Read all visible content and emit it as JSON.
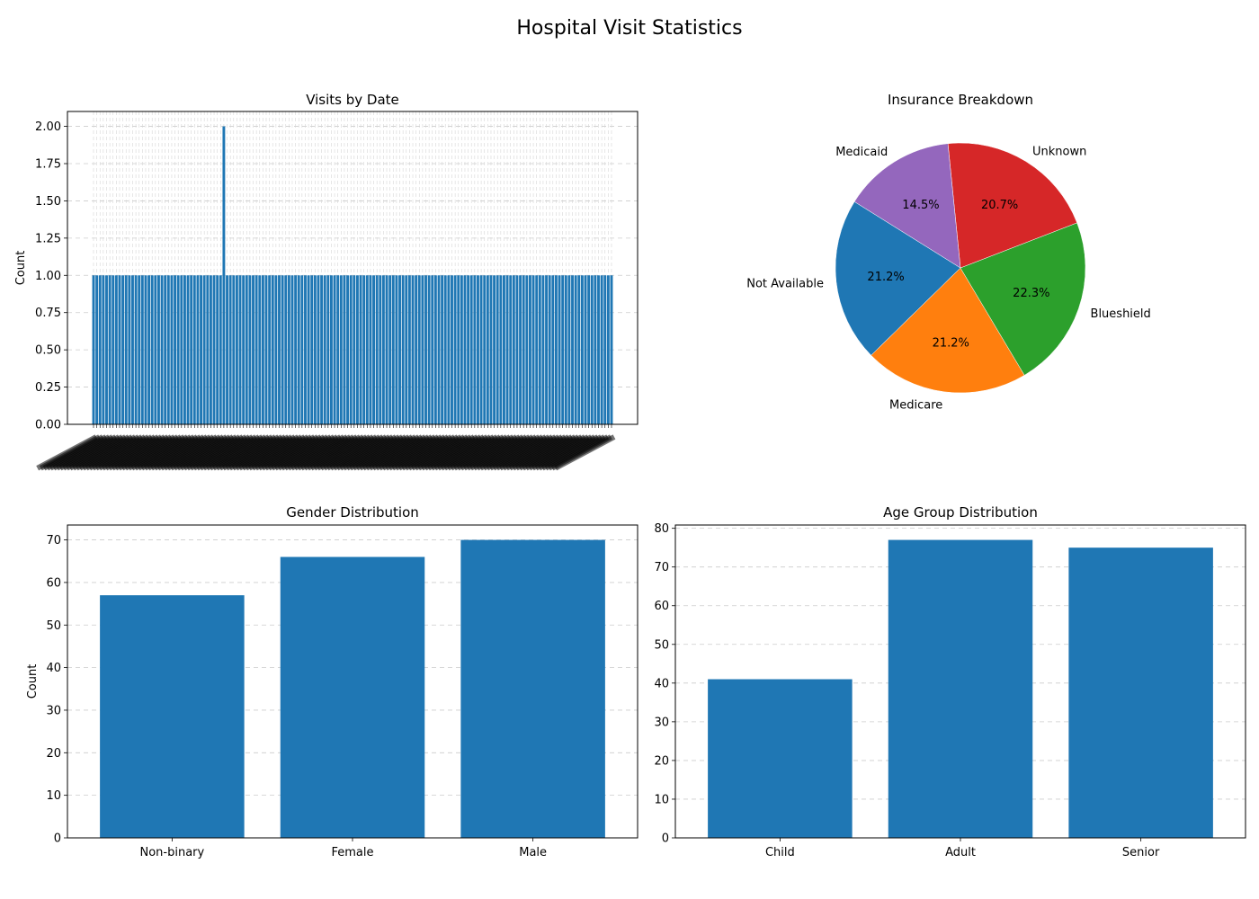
{
  "figure": {
    "title": "Hospital Visit Statistics"
  },
  "chart_data": [
    {
      "type": "bar",
      "title": "Visits by Date",
      "xlabel": "",
      "ylabel": "Count",
      "ylim": [
        0,
        2.1
      ],
      "yticks": [
        "0.00",
        "0.25",
        "0.50",
        "0.75",
        "1.00",
        "1.25",
        "1.50",
        "1.75",
        "2.00"
      ],
      "grid": true,
      "color": "#1f77b4",
      "n_bars": 160,
      "default_value": 1,
      "peaks": [
        {
          "index": 40,
          "value": 2
        }
      ],
      "xtick_labels_note": "dense overlapping rotated date tick labels (illegible)"
    },
    {
      "type": "pie",
      "title": "Insurance Breakdown",
      "slices": [
        {
          "label": "Not Available",
          "value": 21.2,
          "pct_label": "21.2%",
          "color": "#1f77b4"
        },
        {
          "label": "Medicare",
          "value": 21.2,
          "pct_label": "21.2%",
          "color": "#ff7f0e"
        },
        {
          "label": "Blueshield",
          "value": 22.3,
          "pct_label": "22.3%",
          "color": "#2ca02c"
        },
        {
          "label": "Unknown",
          "value": 20.7,
          "pct_label": "20.7%",
          "color": "#d62728"
        },
        {
          "label": "Medicaid",
          "value": 14.5,
          "pct_label": "14.5%",
          "color": "#9467bd"
        }
      ],
      "start_angle_deg": 148
    },
    {
      "type": "bar",
      "title": "Gender Distribution",
      "ylabel": "Count",
      "categories": [
        "Non-binary",
        "Female",
        "Male"
      ],
      "values": [
        57,
        66,
        70
      ],
      "ylim": [
        0,
        73.5
      ],
      "yticks": [
        "0",
        "10",
        "20",
        "30",
        "40",
        "50",
        "60",
        "70"
      ],
      "grid": true,
      "color": "#1f77b4"
    },
    {
      "type": "bar",
      "title": "Age Group Distribution",
      "ylabel": "",
      "categories": [
        "Child",
        "Adult",
        "Senior"
      ],
      "values": [
        41,
        77,
        75
      ],
      "ylim": [
        0,
        80.85
      ],
      "yticks": [
        "0",
        "10",
        "20",
        "30",
        "40",
        "50",
        "60",
        "70",
        "80"
      ],
      "grid": true,
      "color": "#1f77b4"
    }
  ]
}
